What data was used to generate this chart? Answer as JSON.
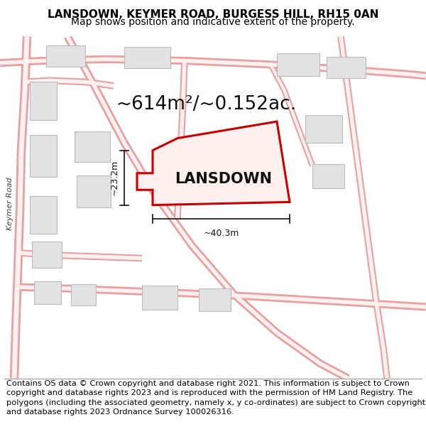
{
  "title_line1": "LANSDOWN, KEYMER ROAD, BURGESS HILL, RH15 0AN",
  "title_line2": "Map shows position and indicative extent of the property.",
  "area_text": "~614m²/~0.152ac.",
  "property_label": "LANSDOWN",
  "dim_vertical": "~23.2m",
  "dim_horizontal": "~40.3m",
  "copyright_text": "Contains OS data © Crown copyright and database right 2021. This information is subject to Crown copyright and database rights 2023 and is reproduced with the permission of HM Land Registry. The polygons (including the associated geometry, namely x, y co-ordinates) are subject to Crown copyright and database rights 2023 Ordnance Survey 100026316.",
  "road_label": "Keymer Road",
  "bg_color": "#ffffff",
  "map_bg": "#f7f0f0",
  "road_stroke": "#e8a0a0",
  "road_fill": "#fdf0f0",
  "building_face": "#e2e2e2",
  "building_edge": "#bbbbbb",
  "property_face": "#fff0f0",
  "property_edge": "#cc0000",
  "dim_color": "#111111",
  "title_fontsize": 11,
  "subtitle_fontsize": 10,
  "area_fontsize": 19,
  "label_fontsize": 15,
  "copyright_fontsize": 8.2,
  "road_lw_outer": 7,
  "road_lw_inner": 4,
  "prop_lw": 2.2
}
